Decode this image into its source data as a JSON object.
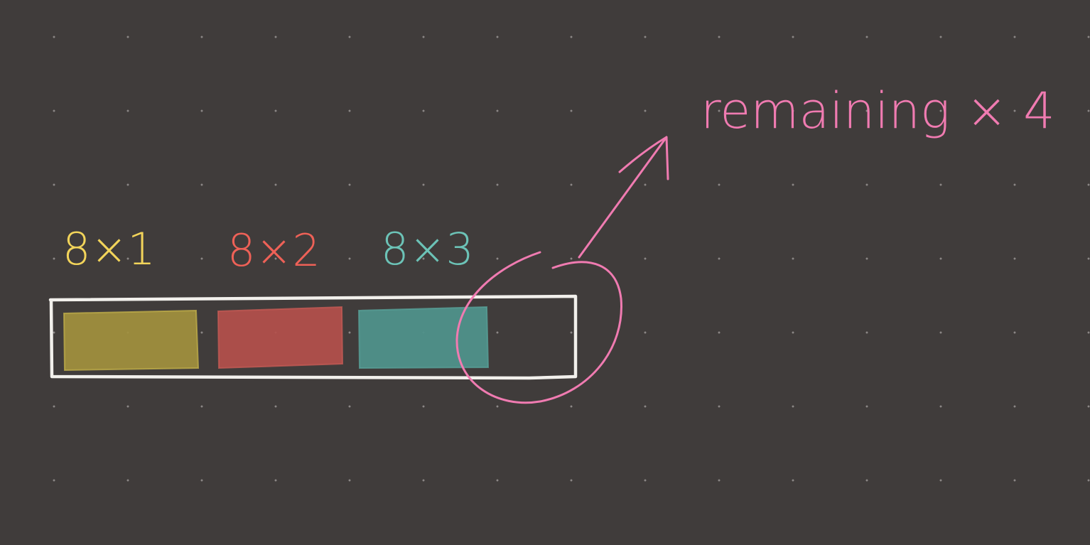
{
  "colors": {
    "background": "#403c3b",
    "dot": "#c8c4c2",
    "outline": "#f2f0ec",
    "yellow": "#f2d45a",
    "red": "#ee6157",
    "teal": "#6cc3b7",
    "pink": "#f07bb1"
  },
  "labels": {
    "first": "8×1",
    "second": "8×2",
    "third": "8×3",
    "remaining": "remaining × 4"
  }
}
